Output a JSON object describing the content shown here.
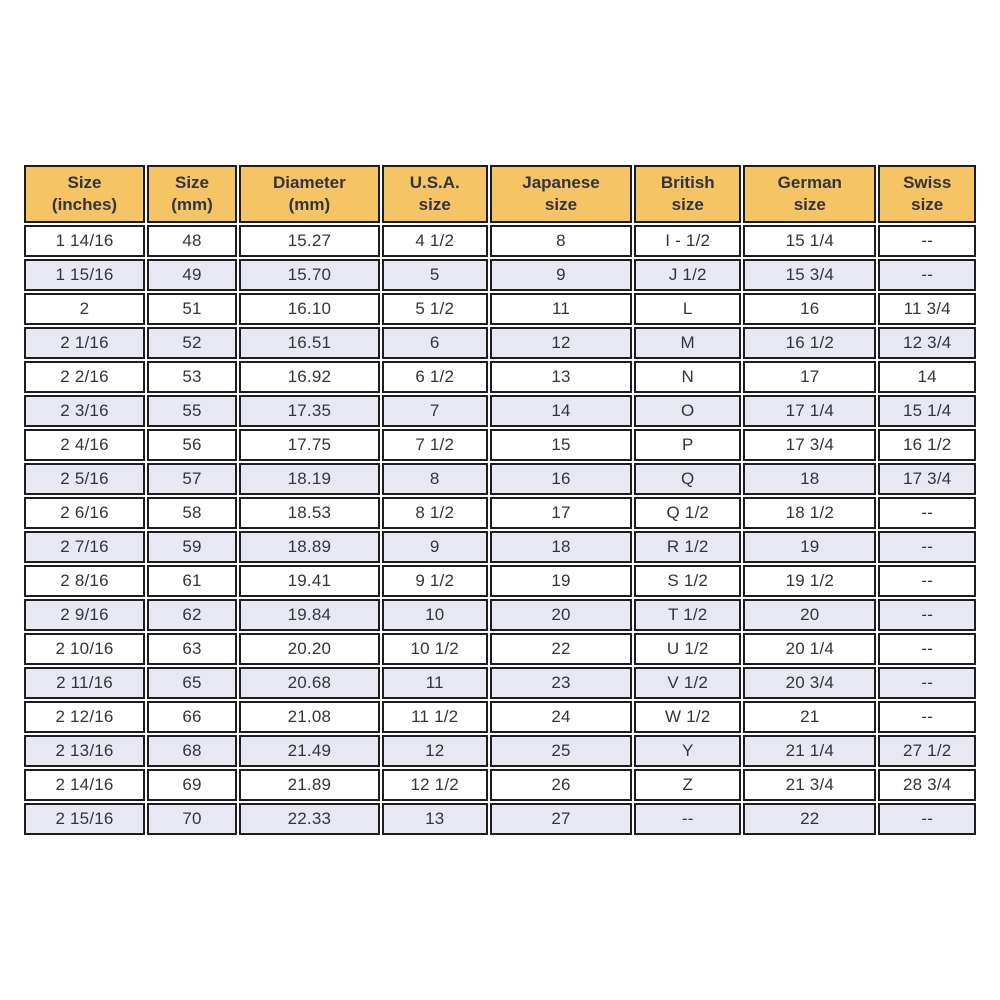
{
  "chart_data": {
    "type": "table",
    "columns": [
      "Size\n(inches)",
      "Size\n(mm)",
      "Diameter\n(mm)",
      "U.S.A.\nsize",
      "Japanese\nsize",
      "British\nsize",
      "German\nsize",
      "Swiss\nsize"
    ],
    "rows": [
      [
        "1 14/16",
        "48",
        "15.27",
        "4 1/2",
        "8",
        "I - 1/2",
        "15 1/4",
        "--"
      ],
      [
        "1 15/16",
        "49",
        "15.70",
        "5",
        "9",
        "J 1/2",
        "15 3/4",
        "--"
      ],
      [
        "2",
        "51",
        "16.10",
        "5 1/2",
        "11",
        "L",
        "16",
        "11 3/4"
      ],
      [
        "2 1/16",
        "52",
        "16.51",
        "6",
        "12",
        "M",
        "16 1/2",
        "12 3/4"
      ],
      [
        "2 2/16",
        "53",
        "16.92",
        "6 1/2",
        "13",
        "N",
        "17",
        "14"
      ],
      [
        "2 3/16",
        "55",
        "17.35",
        "7",
        "14",
        "O",
        "17 1/4",
        "15 1/4"
      ],
      [
        "2 4/16",
        "56",
        "17.75",
        "7 1/2",
        "15",
        "P",
        "17 3/4",
        "16 1/2"
      ],
      [
        "2 5/16",
        "57",
        "18.19",
        "8",
        "16",
        "Q",
        "18",
        "17 3/4"
      ],
      [
        "2 6/16",
        "58",
        "18.53",
        "8 1/2",
        "17",
        "Q 1/2",
        "18 1/2",
        "--"
      ],
      [
        "2 7/16",
        "59",
        "18.89",
        "9",
        "18",
        "R 1/2",
        "19",
        "--"
      ],
      [
        "2 8/16",
        "61",
        "19.41",
        "9 1/2",
        "19",
        "S 1/2",
        "19 1/2",
        "--"
      ],
      [
        "2 9/16",
        "62",
        "19.84",
        "10",
        "20",
        "T 1/2",
        "20",
        "--"
      ],
      [
        "2 10/16",
        "63",
        "20.20",
        "10 1/2",
        "22",
        "U 1/2",
        "20 1/4",
        "--"
      ],
      [
        "2 11/16",
        "65",
        "20.68",
        "11",
        "23",
        "V 1/2",
        "20 3/4",
        "--"
      ],
      [
        "2 12/16",
        "66",
        "21.08",
        "11 1/2",
        "24",
        "W 1/2",
        "21",
        "--"
      ],
      [
        "2 13/16",
        "68",
        "21.49",
        "12",
        "25",
        "Y",
        "21 1/4",
        "27 1/2"
      ],
      [
        "2 14/16",
        "69",
        "21.89",
        "12 1/2",
        "26",
        "Z",
        "21 3/4",
        "28 3/4"
      ],
      [
        "2 15/16",
        "70",
        "22.33",
        "13",
        "27",
        "--",
        "22",
        "--"
      ]
    ]
  },
  "style": {
    "header_bg": "#f5c464",
    "row_bg": "#ffffff",
    "alt_row_bg": "#e8e8f3",
    "border_color": "#1d1d20",
    "text_color": "#34343e",
    "page_bg": "#ffffff"
  }
}
